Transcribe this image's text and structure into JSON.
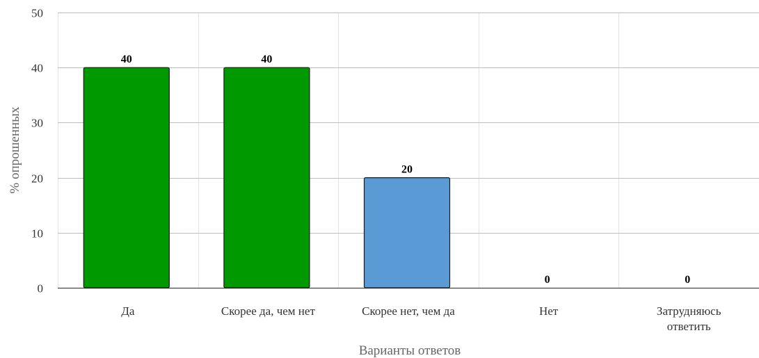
{
  "chart_data": {
    "type": "bar",
    "categories": [
      [
        "Да"
      ],
      [
        "Скорее да, чем нет"
      ],
      [
        "Скорее нет, чем да"
      ],
      [
        "Нет"
      ],
      [
        "Затрудняюсь",
        "ответить"
      ]
    ],
    "values": [
      40,
      40,
      20,
      0,
      0
    ],
    "data_labels": [
      "40",
      "40",
      "20",
      "0",
      "0"
    ],
    "bar_colors": [
      "#009900",
      "#009900",
      "#5b9bd5",
      "#009900",
      "#009900"
    ],
    "xlabel": "Варианты ответов",
    "ylabel": "% опрошенных",
    "ylim": [
      0,
      50
    ],
    "yticks": [
      0,
      10,
      20,
      30,
      40,
      50
    ],
    "grid": true,
    "legend": "none"
  }
}
